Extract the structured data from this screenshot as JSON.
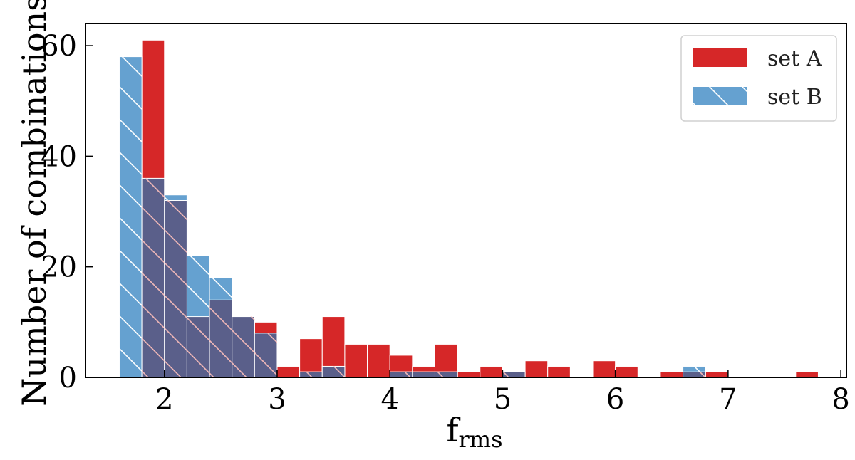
{
  "chart_data": {
    "type": "bar",
    "histogram": true,
    "bin_width": 0.2,
    "xlabel_main": "f",
    "xlabel_sub": "rms",
    "ylabel": "Number of combinations",
    "xlim": [
      1.3,
      8.05
    ],
    "ylim": [
      0,
      64
    ],
    "xticks": [
      2,
      3,
      4,
      5,
      6,
      7,
      8
    ],
    "yticks": [
      0,
      20,
      40,
      60
    ],
    "grid": false,
    "legend_position": "top-right",
    "series": [
      {
        "name": "set A",
        "color": "#d62728",
        "hatch": false,
        "bins": [
          {
            "x0": 1.8,
            "value": 61
          },
          {
            "x0": 2.0,
            "value": 32
          },
          {
            "x0": 2.2,
            "value": 11
          },
          {
            "x0": 2.4,
            "value": 14
          },
          {
            "x0": 2.6,
            "value": 11
          },
          {
            "x0": 2.8,
            "value": 10
          },
          {
            "x0": 3.0,
            "value": 2
          },
          {
            "x0": 3.2,
            "value": 7
          },
          {
            "x0": 3.4,
            "value": 11
          },
          {
            "x0": 3.6,
            "value": 6
          },
          {
            "x0": 3.8,
            "value": 6
          },
          {
            "x0": 4.0,
            "value": 4
          },
          {
            "x0": 4.2,
            "value": 2
          },
          {
            "x0": 4.4,
            "value": 6
          },
          {
            "x0": 4.6,
            "value": 1
          },
          {
            "x0": 4.8,
            "value": 2
          },
          {
            "x0": 5.0,
            "value": 1
          },
          {
            "x0": 5.2,
            "value": 3
          },
          {
            "x0": 5.4,
            "value": 2
          },
          {
            "x0": 5.8,
            "value": 3
          },
          {
            "x0": 6.0,
            "value": 2
          },
          {
            "x0": 6.4,
            "value": 1
          },
          {
            "x0": 6.6,
            "value": 1
          },
          {
            "x0": 6.8,
            "value": 1
          },
          {
            "x0": 7.6,
            "value": 1
          }
        ]
      },
      {
        "name": "set B",
        "color": "#4a90c8",
        "hatch": true,
        "bins": [
          {
            "x0": 1.6,
            "value": 58
          },
          {
            "x0": 1.8,
            "value": 36
          },
          {
            "x0": 2.0,
            "value": 33
          },
          {
            "x0": 2.2,
            "value": 22
          },
          {
            "x0": 2.4,
            "value": 18
          },
          {
            "x0": 2.6,
            "value": 11
          },
          {
            "x0": 2.8,
            "value": 8
          },
          {
            "x0": 3.2,
            "value": 1
          },
          {
            "x0": 3.4,
            "value": 2
          },
          {
            "x0": 4.0,
            "value": 1
          },
          {
            "x0": 4.2,
            "value": 1
          },
          {
            "x0": 4.4,
            "value": 1
          },
          {
            "x0": 5.0,
            "value": 1
          },
          {
            "x0": 6.6,
            "value": 2
          }
        ]
      }
    ],
    "overlap_color": "#5a5f8a"
  }
}
